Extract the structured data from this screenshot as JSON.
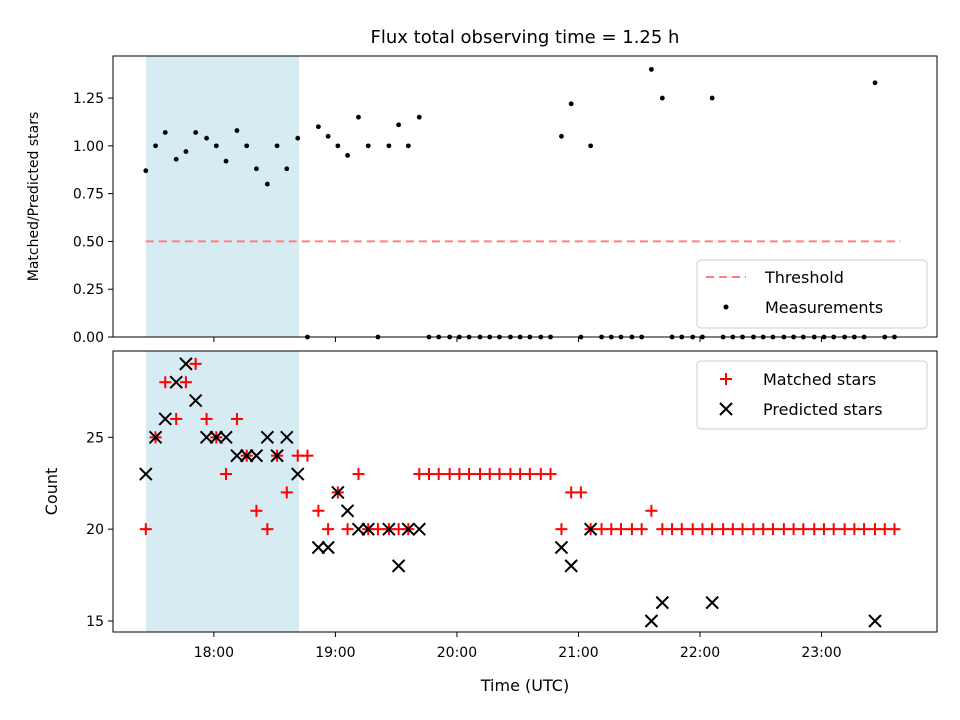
{
  "chart_data": [
    {
      "type": "scatter",
      "title": "Flux total observing time = 1.25 h",
      "xlabel": "",
      "ylabel": "Matched/Predicted stars",
      "xlim": [
        17.17,
        23.95
      ],
      "ylim": [
        0,
        1.47
      ],
      "yticks": [
        0.0,
        0.25,
        0.5,
        0.75,
        1.0,
        1.25
      ],
      "ytick_labels": [
        "0.00",
        "0.25",
        "0.50",
        "0.75",
        "1.00",
        "1.25"
      ],
      "shaded_band": {
        "x0": 17.44,
        "x1": 18.7,
        "color": "#add8e6"
      },
      "threshold": {
        "name": "Threshold",
        "value": 0.5,
        "x0": 17.44,
        "x1": 23.65,
        "color": "#ff7f7f"
      },
      "legend": {
        "position": "lower-right",
        "entries": [
          "Threshold",
          "Measurements"
        ]
      },
      "series": [
        {
          "name": "Measurements",
          "color": "#000000",
          "points": [
            [
              17.44,
              0.87
            ],
            [
              17.52,
              1.0
            ],
            [
              17.6,
              1.07
            ],
            [
              17.69,
              0.93
            ],
            [
              17.77,
              0.97
            ],
            [
              17.85,
              1.07
            ],
            [
              17.94,
              1.04
            ],
            [
              18.02,
              1.0
            ],
            [
              18.1,
              0.92
            ],
            [
              18.19,
              1.08
            ],
            [
              18.27,
              1.0
            ],
            [
              18.35,
              0.88
            ],
            [
              18.44,
              0.8
            ],
            [
              18.52,
              1.0
            ],
            [
              18.6,
              0.88
            ],
            [
              18.69,
              1.04
            ],
            [
              18.77,
              0.0
            ],
            [
              18.86,
              1.1
            ],
            [
              18.94,
              1.05
            ],
            [
              19.02,
              1.0
            ],
            [
              19.1,
              0.95
            ],
            [
              19.19,
              1.15
            ],
            [
              19.27,
              1.0
            ],
            [
              19.35,
              0.0
            ],
            [
              19.44,
              1.0
            ],
            [
              19.52,
              1.11
            ],
            [
              19.6,
              1.0
            ],
            [
              19.69,
              1.15
            ],
            [
              19.77,
              0.0
            ],
            [
              19.85,
              0.0
            ],
            [
              19.94,
              0.0
            ],
            [
              20.02,
              0.0
            ],
            [
              20.1,
              0.0
            ],
            [
              20.19,
              0.0
            ],
            [
              20.27,
              0.0
            ],
            [
              20.35,
              0.0
            ],
            [
              20.44,
              0.0
            ],
            [
              20.52,
              0.0
            ],
            [
              20.6,
              0.0
            ],
            [
              20.69,
              0.0
            ],
            [
              20.77,
              0.0
            ],
            [
              20.86,
              1.05
            ],
            [
              20.94,
              1.22
            ],
            [
              21.02,
              0.0
            ],
            [
              21.1,
              1.0
            ],
            [
              21.19,
              0.0
            ],
            [
              21.27,
              0.0
            ],
            [
              21.35,
              0.0
            ],
            [
              21.44,
              0.0
            ],
            [
              21.52,
              0.0
            ],
            [
              21.6,
              1.4
            ],
            [
              21.69,
              1.25
            ],
            [
              21.77,
              0.0
            ],
            [
              21.85,
              0.0
            ],
            [
              21.94,
              0.0
            ],
            [
              22.02,
              0.0
            ],
            [
              22.1,
              1.25
            ],
            [
              22.19,
              0.0
            ],
            [
              22.27,
              0.0
            ],
            [
              22.35,
              0.0
            ],
            [
              22.44,
              0.0
            ],
            [
              22.52,
              0.0
            ],
            [
              22.6,
              0.0
            ],
            [
              22.69,
              0.0
            ],
            [
              22.77,
              0.0
            ],
            [
              22.85,
              0.0
            ],
            [
              22.94,
              0.0
            ],
            [
              23.02,
              0.0
            ],
            [
              23.1,
              0.0
            ],
            [
              23.19,
              0.0
            ],
            [
              23.27,
              0.0
            ],
            [
              23.35,
              0.0
            ],
            [
              23.44,
              1.33
            ],
            [
              23.52,
              0.0
            ],
            [
              23.6,
              0.0
            ]
          ]
        }
      ]
    },
    {
      "type": "scatter",
      "title": "",
      "xlabel": "Time (UTC)",
      "ylabel": "Count",
      "xlim": [
        17.17,
        23.95
      ],
      "ylim": [
        14.4,
        29.7
      ],
      "xticks": [
        18,
        19,
        20,
        21,
        22,
        23
      ],
      "xtick_labels": [
        "18:00",
        "19:00",
        "20:00",
        "21:00",
        "22:00",
        "23:00"
      ],
      "yticks": [
        15,
        20,
        25
      ],
      "ytick_labels": [
        "15",
        "20",
        "25"
      ],
      "shaded_band": {
        "x0": 17.44,
        "x1": 18.7,
        "color": "#add8e6"
      },
      "legend": {
        "position": "upper-right",
        "entries": [
          "Matched stars",
          "Predicted stars"
        ]
      },
      "series": [
        {
          "name": "Matched stars",
          "marker": "plus",
          "color": "#ff0000",
          "points": [
            [
              17.44,
              20
            ],
            [
              17.52,
              25
            ],
            [
              17.6,
              28
            ],
            [
              17.69,
              26
            ],
            [
              17.77,
              28
            ],
            [
              17.85,
              29
            ],
            [
              17.94,
              26
            ],
            [
              18.02,
              25
            ],
            [
              18.1,
              23
            ],
            [
              18.19,
              26
            ],
            [
              18.27,
              24
            ],
            [
              18.35,
              21
            ],
            [
              18.44,
              20
            ],
            [
              18.52,
              24
            ],
            [
              18.6,
              22
            ],
            [
              18.69,
              24
            ],
            [
              18.77,
              24
            ],
            [
              18.86,
              21
            ],
            [
              18.94,
              20
            ],
            [
              19.02,
              22
            ],
            [
              19.1,
              20
            ],
            [
              19.19,
              23
            ],
            [
              19.27,
              20
            ],
            [
              19.35,
              20
            ],
            [
              19.44,
              20
            ],
            [
              19.52,
              20
            ],
            [
              19.6,
              20
            ],
            [
              19.69,
              23
            ],
            [
              19.77,
              23
            ],
            [
              19.85,
              23
            ],
            [
              19.94,
              23
            ],
            [
              20.02,
              23
            ],
            [
              20.1,
              23
            ],
            [
              20.19,
              23
            ],
            [
              20.27,
              23
            ],
            [
              20.35,
              23
            ],
            [
              20.44,
              23
            ],
            [
              20.52,
              23
            ],
            [
              20.6,
              23
            ],
            [
              20.69,
              23
            ],
            [
              20.77,
              23
            ],
            [
              20.86,
              20
            ],
            [
              20.94,
              22
            ],
            [
              21.02,
              22
            ],
            [
              21.1,
              20
            ],
            [
              21.19,
              20
            ],
            [
              21.27,
              20
            ],
            [
              21.35,
              20
            ],
            [
              21.44,
              20
            ],
            [
              21.52,
              20
            ],
            [
              21.6,
              21
            ],
            [
              21.69,
              20
            ],
            [
              21.77,
              20
            ],
            [
              21.85,
              20
            ],
            [
              21.94,
              20
            ],
            [
              22.02,
              20
            ],
            [
              22.1,
              20
            ],
            [
              22.19,
              20
            ],
            [
              22.27,
              20
            ],
            [
              22.35,
              20
            ],
            [
              22.44,
              20
            ],
            [
              22.52,
              20
            ],
            [
              22.6,
              20
            ],
            [
              22.69,
              20
            ],
            [
              22.77,
              20
            ],
            [
              22.85,
              20
            ],
            [
              22.94,
              20
            ],
            [
              23.02,
              20
            ],
            [
              23.1,
              20
            ],
            [
              23.19,
              20
            ],
            [
              23.27,
              20
            ],
            [
              23.35,
              20
            ],
            [
              23.44,
              20
            ],
            [
              23.52,
              20
            ],
            [
              23.6,
              20
            ]
          ]
        },
        {
          "name": "Predicted stars",
          "marker": "x",
          "color": "#000000",
          "points": [
            [
              17.44,
              23
            ],
            [
              17.52,
              25
            ],
            [
              17.6,
              26
            ],
            [
              17.69,
              28
            ],
            [
              17.77,
              29
            ],
            [
              17.85,
              27
            ],
            [
              17.94,
              25
            ],
            [
              18.02,
              25
            ],
            [
              18.1,
              25
            ],
            [
              18.19,
              24
            ],
            [
              18.27,
              24
            ],
            [
              18.35,
              24
            ],
            [
              18.44,
              25
            ],
            [
              18.52,
              24
            ],
            [
              18.6,
              25
            ],
            [
              18.69,
              23
            ],
            [
              18.86,
              19
            ],
            [
              18.94,
              19
            ],
            [
              19.02,
              22
            ],
            [
              19.1,
              21
            ],
            [
              19.19,
              20
            ],
            [
              19.27,
              20
            ],
            [
              19.44,
              20
            ],
            [
              19.52,
              18
            ],
            [
              19.6,
              20
            ],
            [
              19.69,
              20
            ],
            [
              20.86,
              19
            ],
            [
              20.94,
              18
            ],
            [
              21.1,
              20
            ],
            [
              21.6,
              15
            ],
            [
              21.69,
              16
            ],
            [
              22.1,
              16
            ],
            [
              23.44,
              15
            ]
          ]
        }
      ]
    }
  ]
}
